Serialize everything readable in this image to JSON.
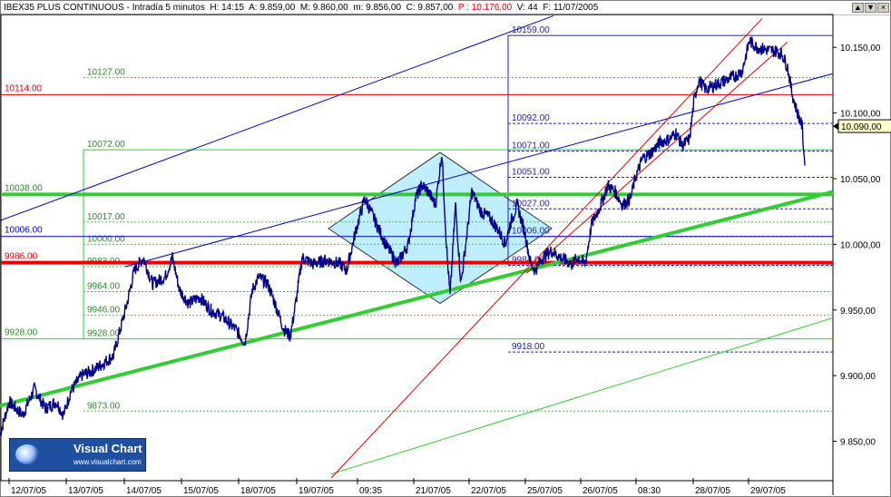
{
  "header": {
    "instrument": "IBEX35 PLUS CONTINUOUS",
    "interval": " - Intradía 5 minutos ",
    "high": "H: 14:15",
    "open": "A: 9.859,00",
    "max": "M: 9.860,00",
    "min": "m: 9.856,00",
    "close": "C: 9.857,00",
    "p": "P : 10.176,00",
    "vol": "V: 44",
    "date": "F: 11/07/2005"
  },
  "window_buttons": [
    "▲",
    "▼",
    "×"
  ],
  "logo": {
    "title": "Visual Chart",
    "url": "www.visualchart.com"
  },
  "current_price": "10.090,00",
  "colors": {
    "price": "#00008b",
    "green_support": "#33cc33",
    "red_level": "#ee0000",
    "blue_channel": "#0000cc",
    "fib_box": "#2222aa",
    "diamond_fill": "#bfefff"
  },
  "chart_data": {
    "type": "line",
    "title": "IBEX35 PLUS CONTINUOUS",
    "ylim": [
      9820,
      10175
    ],
    "y_ticks": [
      "9.850,00",
      "9.900,00",
      "9.950,00",
      "10.000,00",
      "10.050,00",
      "10.100,00",
      "10.150,00"
    ],
    "y_tick_values": [
      9850,
      9900,
      9950,
      10000,
      10050,
      10100,
      10150
    ],
    "x_ticks": [
      "12/07/05",
      "13/07/05",
      "14/07/05",
      "15/07/05",
      "18/07/05",
      "19/07/05",
      "09:35",
      "21/07/05",
      "22/07/05",
      "25/07/05",
      "26/07/05",
      "08:30",
      "28/07/05",
      "29/07/05"
    ],
    "x_tick_positions": [
      10,
      73,
      137,
      200,
      263,
      327,
      394,
      456,
      517,
      579,
      640,
      701,
      764,
      825
    ],
    "series": [
      {
        "values": [
          [
            0,
            9855
          ],
          [
            10,
            9880
          ],
          [
            25,
            9870
          ],
          [
            38,
            9890
          ],
          [
            50,
            9875
          ],
          [
            62,
            9880
          ],
          [
            70,
            9870
          ],
          [
            78,
            9888
          ],
          [
            90,
            9900
          ],
          [
            105,
            9905
          ],
          [
            125,
            9915
          ],
          [
            140,
            9955
          ],
          [
            148,
            9980
          ],
          [
            158,
            9990
          ],
          [
            168,
            9970
          ],
          [
            182,
            9975
          ],
          [
            190,
            9990
          ],
          [
            198,
            9965
          ],
          [
            208,
            9955
          ],
          [
            220,
            9960
          ],
          [
            232,
            9950
          ],
          [
            245,
            9945
          ],
          [
            260,
            9935
          ],
          [
            270,
            9925
          ],
          [
            278,
            9965
          ],
          [
            285,
            9975
          ],
          [
            295,
            9970
          ],
          [
            303,
            9955
          ],
          [
            313,
            9935
          ],
          [
            320,
            9930
          ],
          [
            327,
            9960
          ],
          [
            333,
            9990
          ],
          [
            345,
            9985
          ],
          [
            360,
            9988
          ],
          [
            375,
            9985
          ],
          [
            382,
            9980
          ],
          [
            392,
            10010
          ],
          [
            402,
            10035
          ],
          [
            412,
            10020
          ],
          [
            425,
            10000
          ],
          [
            438,
            9985
          ],
          [
            450,
            10000
          ],
          [
            458,
            10035
          ],
          [
            465,
            10045
          ],
          [
            472,
            10040
          ],
          [
            480,
            10030
          ],
          [
            487,
            10070
          ],
          [
            492,
            10000
          ],
          [
            496,
            9960
          ],
          [
            502,
            10030
          ],
          [
            508,
            9970
          ],
          [
            515,
            10010
          ],
          [
            520,
            10040
          ],
          [
            530,
            10025
          ],
          [
            540,
            10020
          ],
          [
            550,
            10010
          ],
          [
            557,
            10000
          ],
          [
            562,
            10015
          ],
          [
            570,
            10030
          ],
          [
            578,
            10010
          ],
          [
            585,
            9985
          ],
          [
            590,
            9980
          ],
          [
            598,
            9990
          ],
          [
            608,
            9995
          ],
          [
            618,
            9990
          ],
          [
            630,
            9985
          ],
          [
            637,
            9990
          ],
          [
            645,
            9985
          ],
          [
            652,
            10015
          ],
          [
            662,
            10030
          ],
          [
            670,
            10045
          ],
          [
            678,
            10040
          ],
          [
            686,
            10030
          ],
          [
            695,
            10035
          ],
          [
            700,
            10050
          ],
          [
            708,
            10065
          ],
          [
            718,
            10070
          ],
          [
            728,
            10078
          ],
          [
            738,
            10080
          ],
          [
            745,
            10085
          ],
          [
            752,
            10075
          ],
          [
            760,
            10080
          ],
          [
            765,
            10110
          ],
          [
            770,
            10125
          ],
          [
            778,
            10118
          ],
          [
            790,
            10122
          ],
          [
            800,
            10125
          ],
          [
            810,
            10128
          ],
          [
            818,
            10132
          ],
          [
            826,
            10155
          ],
          [
            834,
            10150
          ],
          [
            845,
            10148
          ],
          [
            855,
            10147
          ],
          [
            862,
            10145
          ],
          [
            868,
            10135
          ],
          [
            873,
            10115
          ],
          [
            878,
            10102
          ],
          [
            884,
            10090
          ],
          [
            887,
            10060
          ]
        ]
      }
    ],
    "levels_left": [
      {
        "label": "10114.00",
        "value": 10114,
        "style": "red"
      },
      {
        "label": "10038.00",
        "value": 10038,
        "style": "green-thick"
      },
      {
        "label": "10006.00",
        "value": 10006,
        "style": "blue"
      },
      {
        "label": "9986.00",
        "value": 9986,
        "style": "red-thick"
      },
      {
        "label": "9928.00",
        "value": 9928,
        "style": "green"
      }
    ],
    "fib_green": [
      {
        "label": "10127.00",
        "value": 10127
      },
      {
        "label": "10072.00",
        "value": 10072
      },
      {
        "label": "10017.00",
        "value": 10017
      },
      {
        "label": "10000.00",
        "value": 10000
      },
      {
        "label": "9983.00",
        "value": 9983
      },
      {
        "label": "9964.00",
        "value": 9964
      },
      {
        "label": "9946.00",
        "value": 9946
      },
      {
        "label": "9928.00",
        "value": 9928
      },
      {
        "label": "9873.00",
        "value": 9873
      }
    ],
    "fib_blue": [
      {
        "label": "10159.00",
        "value": 10159
      },
      {
        "label": "10092.00",
        "value": 10092
      },
      {
        "label": "10071.00",
        "value": 10071
      },
      {
        "label": "10051.00",
        "value": 10051
      },
      {
        "label": "10027.00",
        "value": 10027
      },
      {
        "label": "10006.00",
        "value": 10006
      },
      {
        "label": "9984.00",
        "value": 9984
      },
      {
        "label": "9918.00",
        "value": 9918
      }
    ],
    "trendlines": [
      {
        "style": "green-thick",
        "from": [
          0,
          9877
        ],
        "to": [
          918,
          10040
        ]
      },
      {
        "style": "green",
        "from": [
          365,
          9825
        ],
        "to": [
          918,
          9944
        ]
      },
      {
        "style": "blue",
        "from": [
          0,
          10018
        ],
        "to": [
          610,
          10174
        ]
      },
      {
        "style": "blue",
        "from": [
          138,
          9983
        ],
        "to": [
          918,
          10130
        ]
      },
      {
        "style": "red",
        "from": [
          365,
          9822
        ],
        "to": [
          840,
          10172
        ]
      },
      {
        "style": "red",
        "from": [
          580,
          9978
        ],
        "to": [
          868,
          10154
        ]
      }
    ],
    "diamond": {
      "points": [
        [
          362,
          10012
        ],
        [
          485,
          10070
        ],
        [
          608,
          10012
        ],
        [
          485,
          9955
        ]
      ]
    }
  }
}
